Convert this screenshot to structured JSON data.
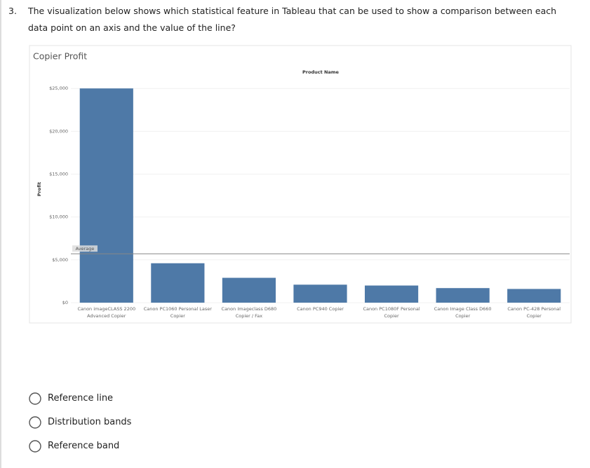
{
  "question": {
    "number": "3.",
    "text": "The visualization below shows which statistical feature in Tableau that can be used to show a comparison between each data point on an axis and the value of the line?"
  },
  "chart_data": {
    "type": "bar",
    "title": "Copier Profit",
    "x_header": "Product Name",
    "y_label": "Profit",
    "categories": [
      "Canon imageCLASS 2200 Advanced Copier",
      "Canon PC1060 Personal Laser Copier",
      "Canon Imageclass D680 Copier / Fax",
      "Canon PC940 Copier",
      "Canon PC1080F Personal Copier",
      "Canon Image Class D660 Copier",
      "Canon PC-428 Personal Copier"
    ],
    "values": [
      25000,
      4600,
      2900,
      2100,
      2000,
      1700,
      1600
    ],
    "color": "#4e79a7",
    "ylim": [
      0,
      26000
    ],
    "yticks": [
      {
        "value": 0,
        "label": "$0"
      },
      {
        "value": 5000,
        "label": "$5,000"
      },
      {
        "value": 10000,
        "label": "$10,000"
      },
      {
        "value": 15000,
        "label": "$15,000"
      },
      {
        "value": 20000,
        "label": "$20,000"
      },
      {
        "value": 25000,
        "label": "$25,000"
      }
    ],
    "grid": true,
    "reference_line": {
      "label": "Average",
      "value": 5700
    }
  },
  "options": [
    "Reference line",
    "Distribution bands",
    "Reference band"
  ]
}
